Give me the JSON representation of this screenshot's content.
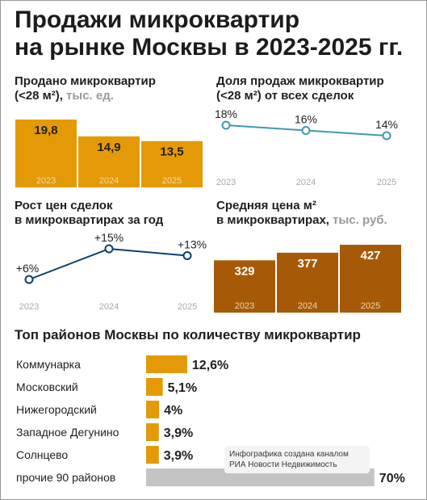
{
  "title": {
    "line1": "Продажи микроквартир",
    "line2": "на рынке Москвы в 2023-2025 гг."
  },
  "colors": {
    "orange": "#e49a06",
    "brown": "#a65a08",
    "teal": "#3e9ab0",
    "navy": "#0e3f6d",
    "gray_bar": "#c4c4c4"
  },
  "charts": {
    "sold": {
      "title1": "Продано микроквартир",
      "title2a": "(<28 м²),",
      "unit": "тыс. ед."
    },
    "share": {
      "title1": "Доля продаж микроквартир",
      "title2": "(<28 м²) от всех сделок"
    },
    "growth": {
      "title1": "Рост цен сделок",
      "title2": "в микроквартирах за год"
    },
    "price": {
      "title1": "Средняя цена м²",
      "title2a": "в микроквартирах,",
      "unit": "тыс. руб."
    }
  },
  "districts_title": "Топ районов Москвы по количеству микроквартир",
  "note": {
    "line1": "Инфографика создана каналом",
    "line2": "РИА Новости Недвижимость"
  },
  "chart_data": [
    {
      "type": "bar",
      "title": "Продано микроквартир (<28 м²), тыс. ед.",
      "categories": [
        "2023",
        "2024",
        "2025"
      ],
      "values": [
        19.8,
        14.9,
        13.5
      ],
      "labels": [
        "19,8",
        "14,9",
        "13,5"
      ]
    },
    {
      "type": "line",
      "title": "Доля продаж микроквартир (<28 м²) от всех сделок",
      "x": [
        "2023",
        "2024",
        "2025"
      ],
      "y": [
        18,
        16,
        14
      ],
      "labels": [
        "18%",
        "16%",
        "14%"
      ]
    },
    {
      "type": "line",
      "title": "Рост цен сделок в микроквартирах за год",
      "x": [
        "2023",
        "2024",
        "2025"
      ],
      "y": [
        6,
        15,
        13
      ],
      "labels": [
        "+6%",
        "+15%",
        "+13%"
      ]
    },
    {
      "type": "bar",
      "title": "Средняя цена м² в микроквартирах, тыс. руб.",
      "categories": [
        "2023",
        "2024",
        "2025"
      ],
      "values": [
        329,
        377,
        427
      ],
      "labels": [
        "329",
        "377",
        "427"
      ]
    },
    {
      "type": "bar",
      "title": "Топ районов Москвы по количеству микроквартир",
      "categories": [
        "Коммунарка",
        "Московский",
        "Нижегородский",
        "Западное Дегунино",
        "Солнцево",
        "прочие 90 районов"
      ],
      "values": [
        12.6,
        5.1,
        4,
        3.9,
        3.9,
        70
      ],
      "labels": [
        "12,6%",
        "5,1%",
        "4%",
        "3,9%",
        "3,9%",
        "70%"
      ]
    }
  ]
}
